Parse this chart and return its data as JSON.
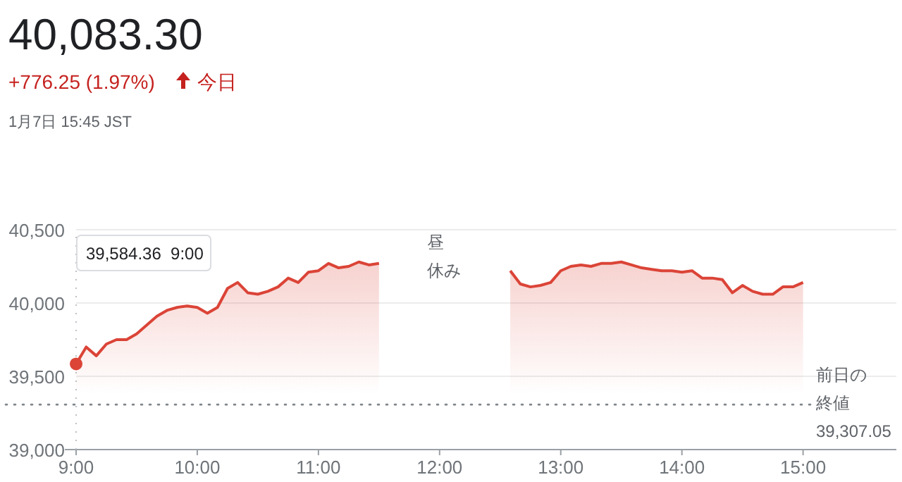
{
  "chart_data": {
    "type": "area",
    "title": "40,083.30",
    "subtitle": "+776.25 (1.97%)",
    "annotations": [
      "今日",
      "1月7日 15:45 JST",
      "昼休み",
      "39,584.36  9:00"
    ],
    "series": [
      {
        "color": "#db4437",
        "x": [
          9,
          9.0833,
          9.1667,
          9.25,
          9.3333,
          9.4167,
          9.5,
          9.5833,
          9.6667,
          9.75,
          9.8333,
          9.9167,
          10,
          10.0833,
          10.1667,
          10.25,
          10.3333,
          10.4167,
          10.5,
          10.5833,
          10.6667,
          10.75,
          10.8333,
          10.9167,
          11,
          11.0833,
          11.1667,
          11.25,
          11.3333,
          11.4167,
          11.5
        ],
        "values": [
          39584.36,
          39700,
          39640,
          39720,
          39750,
          39750,
          39790,
          39850,
          39910,
          39950,
          39970,
          39980,
          39970,
          39930,
          39970,
          40100,
          40140,
          40070,
          40060,
          40080,
          40110,
          40170,
          40140,
          40210,
          40220,
          40270,
          40240,
          40250,
          40280,
          40260,
          40270
        ]
      },
      {
        "color": "#db4437",
        "x": [
          12.5833,
          12.6667,
          12.75,
          12.8333,
          12.9167,
          13,
          13.0833,
          13.1667,
          13.25,
          13.3333,
          13.4167,
          13.5,
          13.5833,
          13.6667,
          13.75,
          13.8333,
          13.9167,
          14,
          14.0833,
          14.1667,
          14.25,
          14.3333,
          14.4167,
          14.5,
          14.5833,
          14.6667,
          14.75,
          14.8333,
          14.9167,
          15
        ],
        "values": [
          40220,
          40130,
          40110,
          40120,
          40140,
          40220,
          40250,
          40260,
          40250,
          40270,
          40270,
          40280,
          40260,
          40240,
          40230,
          40220,
          40220,
          40210,
          40220,
          40170,
          40170,
          40160,
          40070,
          40120,
          40080,
          40060,
          40060,
          40110,
          40110,
          40140
        ]
      }
    ],
    "xlim": [
      9,
      15.77
    ],
    "xticks": [
      {
        "value": 9,
        "label": "9:00"
      },
      {
        "value": 10,
        "label": "10:00"
      },
      {
        "value": 11,
        "label": "11:00"
      },
      {
        "value": 12,
        "label": "12:00"
      },
      {
        "value": 13,
        "label": "13:00"
      },
      {
        "value": 14,
        "label": "14:00"
      },
      {
        "value": 15,
        "label": "15:00"
      }
    ],
    "ylim": [
      39000,
      40500
    ],
    "yticks": [
      {
        "value": 39000,
        "label": "39,000"
      },
      {
        "value": 39500,
        "label": "39,500"
      },
      {
        "value": 40000,
        "label": "40,000"
      },
      {
        "value": 40500,
        "label": "40,500"
      }
    ],
    "grid": "y",
    "marker": "none",
    "line_style": "solid",
    "ref_lines": [
      {
        "axis": "y",
        "value": 39307.05,
        "label": "前日の終値39,307.05",
        "line_style": "dotted",
        "color": "#80868b"
      },
      {
        "axis": "x",
        "value": 9,
        "line_style": "dotted",
        "color": "#bdc1c6"
      }
    ]
  }
}
